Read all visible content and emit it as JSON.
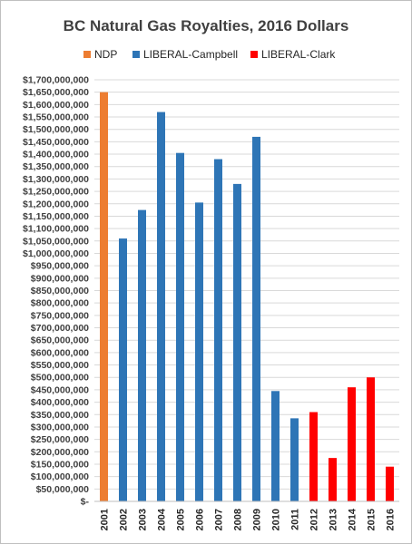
{
  "chart_data": {
    "type": "bar",
    "title": "BC Natural Gas Royalties, 2016 Dollars",
    "xlabel": "",
    "ylabel": "",
    "ylim": [
      0,
      1700000000
    ],
    "y_tick_step": 50000000,
    "grid": true,
    "legend_position": "top",
    "categories": [
      "2001",
      "2002",
      "2003",
      "2004",
      "2005",
      "2006",
      "2007",
      "2008",
      "2009",
      "2010",
      "2011",
      "2012",
      "2013",
      "2014",
      "2015",
      "2016"
    ],
    "series": [
      {
        "name": "NDP",
        "color": "#ed7d31",
        "values": [
          1650000000,
          null,
          null,
          null,
          null,
          null,
          null,
          null,
          null,
          null,
          null,
          null,
          null,
          null,
          null,
          null
        ]
      },
      {
        "name": "LIBERAL-Campbell",
        "color": "#2e75b6",
        "values": [
          null,
          1060000000,
          1175000000,
          1570000000,
          1405000000,
          1205000000,
          1380000000,
          1280000000,
          1470000000,
          445000000,
          335000000,
          null,
          null,
          null,
          null,
          null
        ]
      },
      {
        "name": "LIBERAL-Clark",
        "color": "#ff0000",
        "values": [
          null,
          null,
          null,
          null,
          null,
          null,
          null,
          null,
          null,
          null,
          null,
          360000000,
          175000000,
          460000000,
          500000000,
          140000000
        ]
      }
    ],
    "y_tick_labels": [
      "$-",
      "$50,000,000",
      "$100,000,000",
      "$150,000,000",
      "$200,000,000",
      "$250,000,000",
      "$300,000,000",
      "$350,000,000",
      "$400,000,000",
      "$450,000,000",
      "$500,000,000",
      "$550,000,000",
      "$600,000,000",
      "$650,000,000",
      "$700,000,000",
      "$750,000,000",
      "$800,000,000",
      "$850,000,000",
      "$900,000,000",
      "$950,000,000",
      "$1,000,000,000",
      "$1,050,000,000",
      "$1,100,000,000",
      "$1,150,000,000",
      "$1,200,000,000",
      "$1,250,000,000",
      "$1,300,000,000",
      "$1,350,000,000",
      "$1,400,000,000",
      "$1,450,000,000",
      "$1,500,000,000",
      "$1,550,000,000",
      "$1,600,000,000",
      "$1,650,000,000",
      "$1,700,000,000"
    ]
  }
}
